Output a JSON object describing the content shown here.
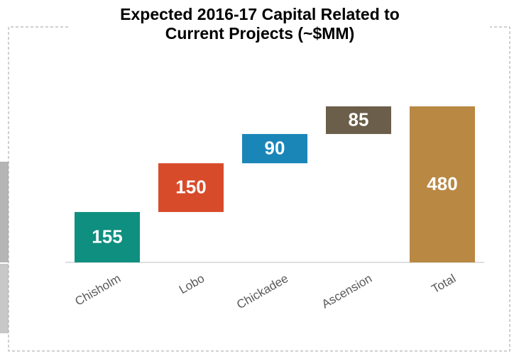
{
  "chart_data": {
    "type": "waterfall",
    "title": [
      "Expected 2016-17 Capital Related to",
      "Current Projects (~$MM)"
    ],
    "categories": [
      "Chisholm",
      "Lobo",
      "Chickadee",
      "Ascension",
      "Total"
    ],
    "values": [
      155,
      150,
      90,
      85,
      480
    ],
    "is_total": [
      false,
      false,
      false,
      false,
      true
    ],
    "colors": [
      "#0f8f80",
      "#d84b2a",
      "#1a86b8",
      "#6b5e4a",
      "#b98843"
    ],
    "ylim": [
      0,
      480
    ]
  }
}
